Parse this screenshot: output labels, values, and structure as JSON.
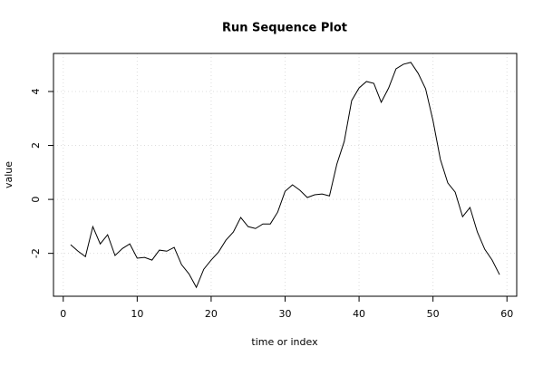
{
  "chart_data": {
    "type": "line",
    "title": "Run Sequence Plot",
    "x_label": "time or index",
    "y_label": "value",
    "x": [
      1,
      2,
      3,
      4,
      5,
      6,
      7,
      8,
      9,
      10,
      11,
      12,
      13,
      14,
      15,
      16,
      17,
      18,
      19,
      20,
      21,
      22,
      23,
      24,
      25,
      26,
      27,
      28,
      29,
      30,
      31,
      32,
      33,
      34,
      35,
      36,
      37,
      38,
      39,
      40,
      41,
      42,
      43,
      44,
      45,
      46,
      47,
      48,
      49,
      50,
      51,
      52,
      53,
      54,
      55,
      56,
      57,
      58,
      59
    ],
    "series": [
      {
        "color": "#000000",
        "values": [
          -1.68,
          -1.92,
          -2.12,
          -1.01,
          -1.65,
          -1.31,
          -2.08,
          -1.82,
          -1.65,
          -2.18,
          -2.15,
          -2.25,
          -1.88,
          -1.92,
          -1.78,
          -2.42,
          -2.76,
          -3.26,
          -2.59,
          -2.25,
          -1.95,
          -1.51,
          -1.21,
          -0.67,
          -1.01,
          -1.08,
          -0.91,
          -0.91,
          -0.47,
          0.3,
          0.54,
          0.34,
          0.07,
          0.17,
          0.2,
          0.13,
          1.31,
          2.15,
          3.66,
          4.13,
          4.37,
          4.3,
          3.6,
          4.13,
          4.84,
          5.01,
          5.08,
          4.67,
          4.1,
          2.92,
          1.48,
          0.61,
          0.27,
          -0.64,
          -0.3,
          -1.21,
          -1.85,
          -2.25,
          -2.79
        ]
      }
    ],
    "xlim": [
      -1.32,
      61.32
    ],
    "ylim": [
      -3.59,
      5.41
    ],
    "xticks": [
      0,
      10,
      20,
      30,
      40,
      50,
      60
    ],
    "yticks": [
      -2,
      0,
      2,
      4
    ],
    "grid": true
  }
}
